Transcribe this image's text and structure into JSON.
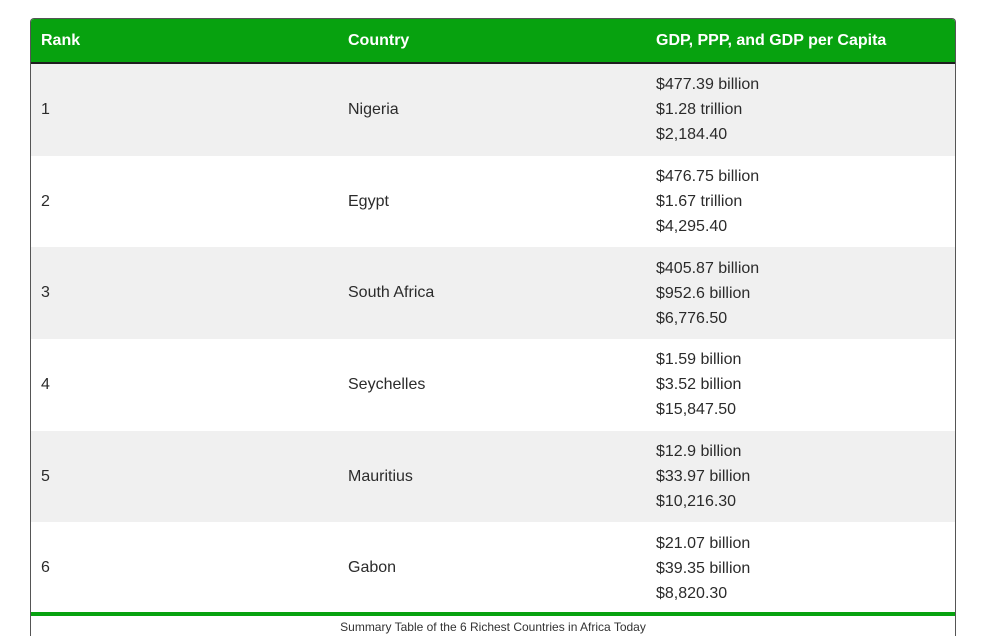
{
  "table": {
    "headers": {
      "rank": "Rank",
      "country": "Country",
      "gdp": "GDP, PPP, and GDP per Capita"
    },
    "rows": [
      {
        "rank": "1",
        "country": "Nigeria",
        "gdp": "$477.39 billion",
        "ppp": "$1.28 trillion",
        "per_capita": "$2,184.40"
      },
      {
        "rank": "2",
        "country": "Egypt",
        "gdp": "$476.75 billion",
        "ppp": "$1.67 trillion",
        "per_capita": "$4,295.40"
      },
      {
        "rank": "3",
        "country": "South Africa",
        "gdp": "$405.87 billion",
        "ppp": "$952.6 billion",
        "per_capita": "$6,776.50"
      },
      {
        "rank": "4",
        "country": "Seychelles",
        "gdp": "$1.59 billion",
        "ppp": "$3.52 billion",
        "per_capita": "$15,847.50"
      },
      {
        "rank": "5",
        "country": "Mauritius",
        "gdp": "$12.9 billion",
        "ppp": "$33.97 billion",
        "per_capita": "$10,216.30"
      },
      {
        "rank": "6",
        "country": "Gabon",
        "gdp": "$21.07 billion",
        "ppp": "$39.35 billion",
        "per_capita": "$8,820.30"
      }
    ],
    "caption": "Summary Table of the 6 Richest Countries in Africa Today"
  },
  "colors": {
    "header_bg": "#07a20f",
    "row_alt_bg": "#f0f0f0"
  }
}
